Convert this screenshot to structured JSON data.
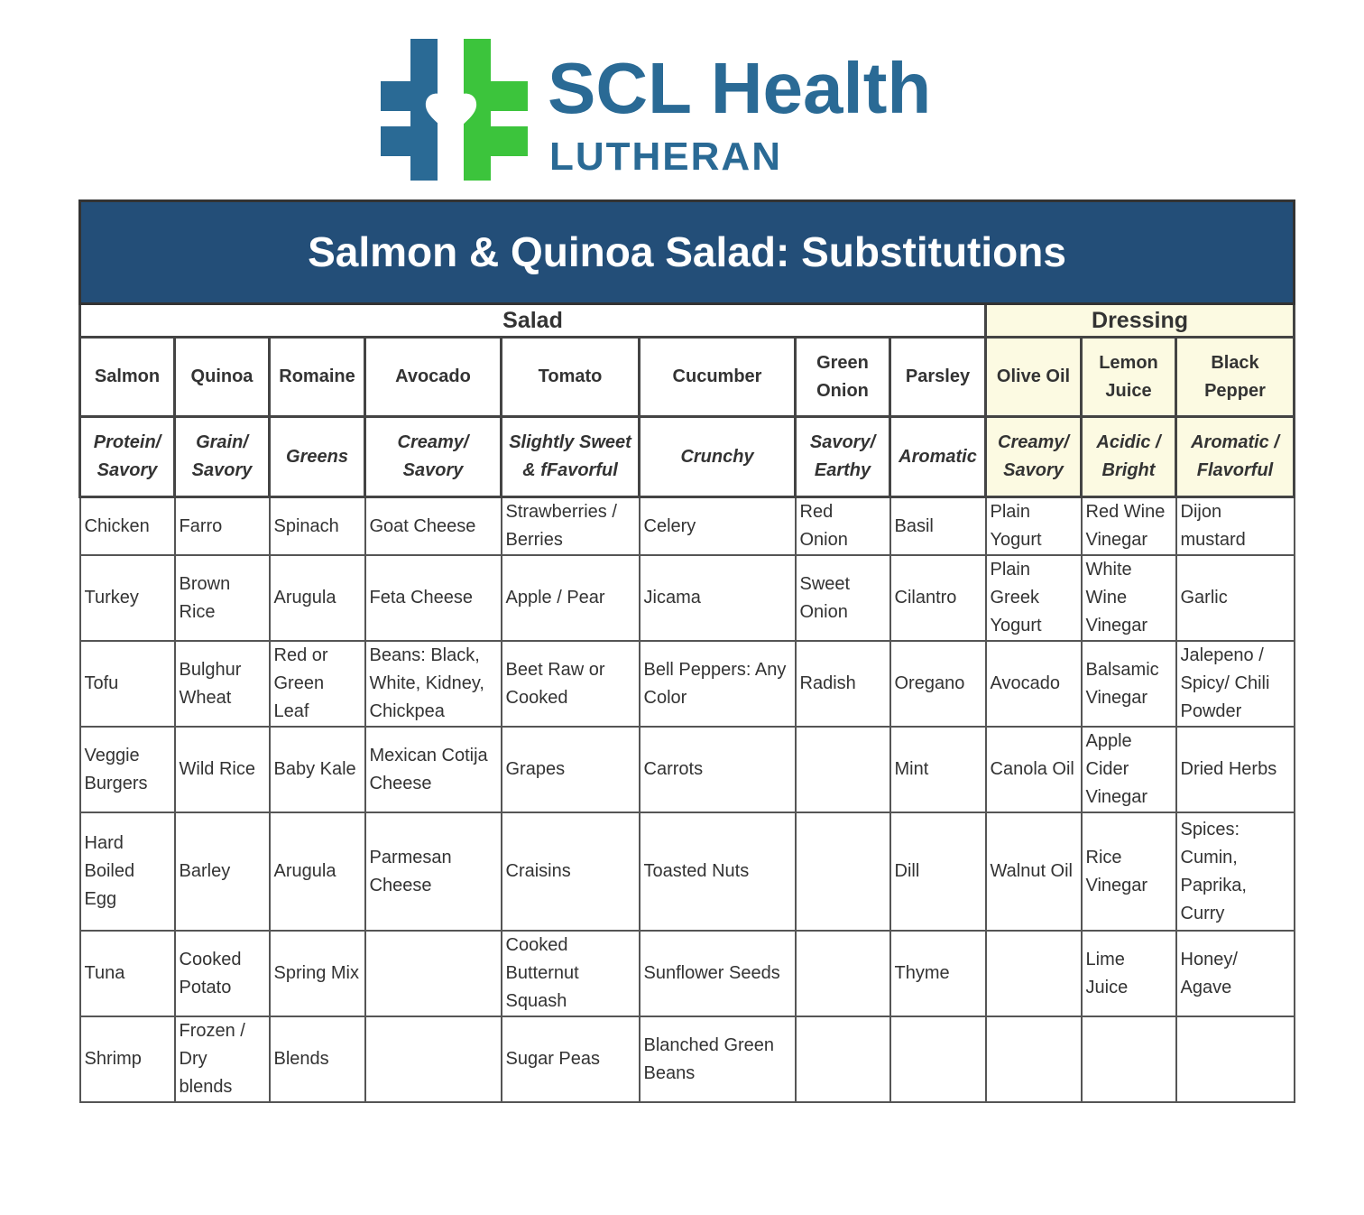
{
  "logo": {
    "name": "SCL Health",
    "subtitle": "LUTHERAN",
    "colors": {
      "blue": "#2a6a95",
      "green": "#3cc43c"
    }
  },
  "title": "Salmon & Quinoa Salad: Substitutions",
  "sections": {
    "salad": "Salad",
    "dressing": "Dressing"
  },
  "columns": [
    "Salmon",
    "Quinoa",
    "Romaine",
    "Avocado",
    "Tomato",
    "Cucumber",
    "Green Onion",
    "Parsley",
    "Olive Oil",
    "Lemon Juice",
    "Black Pepper"
  ],
  "categories": [
    "Protein/ Savory",
    "Grain/ Savory",
    "Greens",
    "Creamy/ Savory",
    "Slightly Sweet & fFavorful",
    "Crunchy",
    "Savory/ Earthy",
    "Aromatic",
    "Creamy/ Savory",
    "Acidic / Bright",
    "Aromatic / Flavorful"
  ],
  "rows": [
    [
      "Chicken",
      "Farro",
      "Spinach",
      "Goat Cheese",
      "Strawberries / Berries",
      "Celery",
      "Red Onion",
      "Basil",
      "Plain Yogurt",
      "Red Wine Vinegar",
      "Dijon mustard"
    ],
    [
      "Turkey",
      "Brown Rice",
      "Arugula",
      "Feta Cheese",
      "Apple / Pear",
      "Jicama",
      "Sweet Onion",
      "Cilantro",
      "Plain Greek Yogurt",
      "White Wine Vinegar",
      "Garlic"
    ],
    [
      "Tofu",
      "Bulghur Wheat",
      "Red or Green Leaf",
      "Beans: Black, White, Kidney, Chickpea",
      "Beet Raw or Cooked",
      "Bell Peppers: Any Color",
      "Radish",
      "Oregano",
      "Avocado",
      "Balsamic Vinegar",
      "Jalepeno / Spicy/ Chili Powder"
    ],
    [
      "Veggie Burgers",
      "Wild Rice",
      "Baby Kale",
      "Mexican Cotija Cheese",
      "Grapes",
      "Carrots",
      "",
      "Mint",
      "Canola Oil",
      "Apple Cider Vinegar",
      "Dried Herbs"
    ],
    [
      "Hard Boiled Egg",
      "Barley",
      "Arugula",
      "Parmesan Cheese",
      "Craisins",
      "Toasted Nuts",
      "",
      "Dill",
      "Walnut Oil",
      "Rice Vinegar",
      "Spices: Cumin, Paprika, Curry"
    ],
    [
      "Tuna",
      "Cooked Potato",
      "Spring Mix",
      "",
      "Cooked Butternut Squash",
      "Sunflower Seeds",
      "",
      "Thyme",
      "",
      "Lime Juice",
      "Honey/ Agave"
    ],
    [
      "Shrimp",
      "Frozen / Dry blends",
      "Blends",
      "",
      "Sugar Peas",
      "Blanched Green Beans",
      "",
      "",
      "",
      "",
      ""
    ]
  ],
  "colors": {
    "title_bg": "#234e78",
    "dressing_bg": "#fcfae2"
  }
}
